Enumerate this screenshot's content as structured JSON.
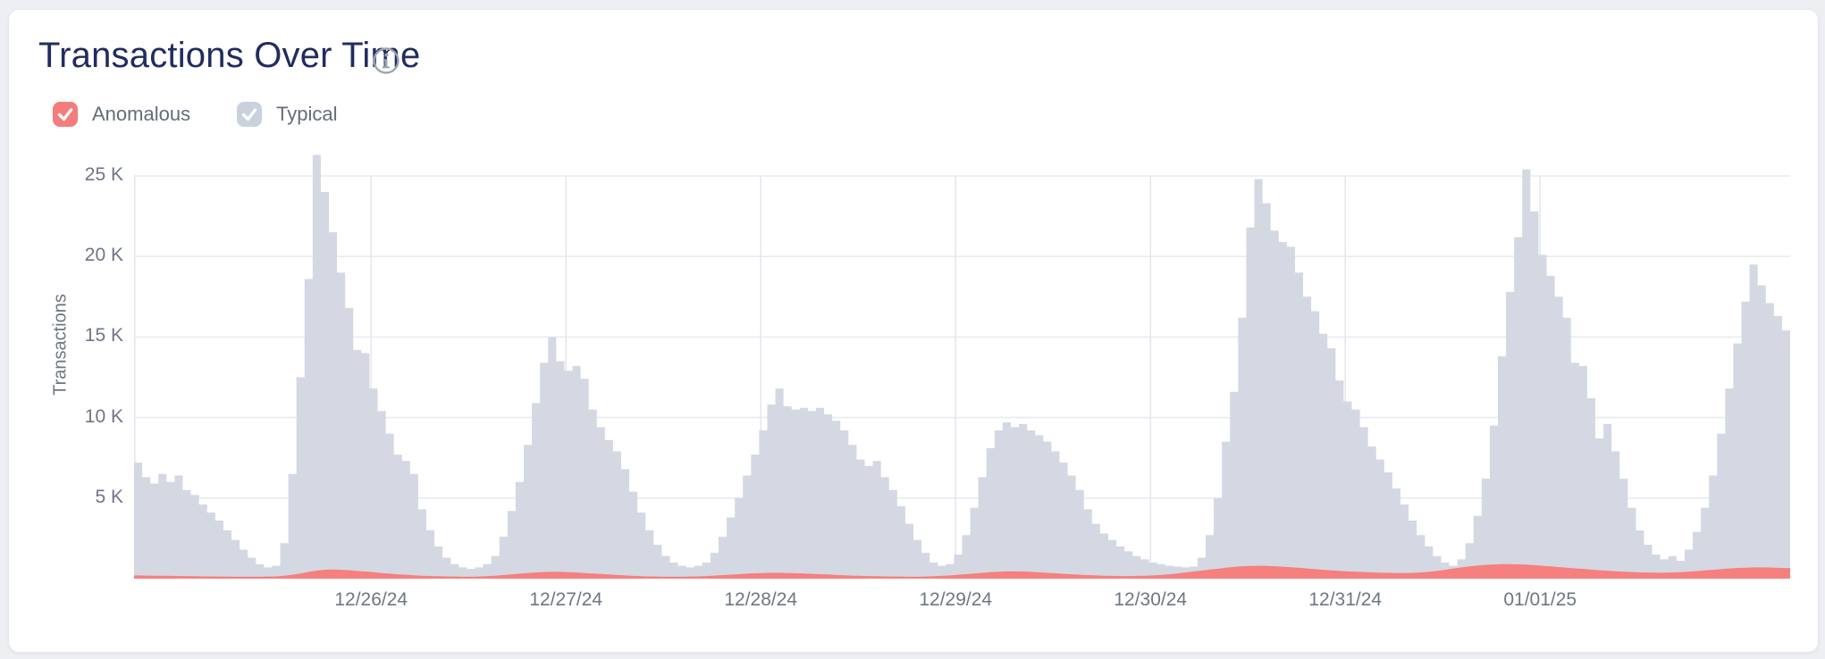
{
  "header": {
    "title": "Transactions Over Time",
    "info_icon": "info-circle-icon"
  },
  "legend": [
    {
      "label": "Anomalous",
      "checked": true,
      "color": "#f57c7c",
      "check_color": "#ffffff"
    },
    {
      "label": "Typical",
      "checked": true,
      "color": "#c9d1df",
      "check_color": "#ffffff"
    }
  ],
  "colors": {
    "page_background": "#edeff3",
    "card_background": "#ffffff",
    "card_border": "#e5e8ee",
    "title_text": "#212c5f",
    "muted_text": "#6e7684",
    "gridline": "#e9ebf2",
    "vertical_gridline": "#e4e7ef",
    "typical_bars": "#d4d8e2",
    "anomalous_area": "#f5807e"
  },
  "chart_data": {
    "type": "bar",
    "title": "Transactions Over Time",
    "xlabel": "",
    "ylabel": "Transactions",
    "values_unit": "thousands of transactions per hourly bucket",
    "ylim": [
      0,
      26500
    ],
    "grid": true,
    "legend_position": "top-left",
    "y_ticks": [
      {
        "value": 25,
        "label": "25 K"
      },
      {
        "value": 20,
        "label": "20 K"
      },
      {
        "value": 15,
        "label": "15 K"
      },
      {
        "value": 10,
        "label": "10 K"
      },
      {
        "value": 5,
        "label": "5 K"
      }
    ],
    "x_tick_labels": [
      "12/26/24",
      "12/27/24",
      "12/28/24",
      "12/29/24",
      "12/30/24",
      "12/31/24",
      "01/01/25"
    ],
    "first_tick_bar_index": 29.2,
    "bars_per_day": 24,
    "daily_peaks_k": [
      26.3,
      15.0,
      11.8,
      9.7,
      24.8,
      25.4,
      19.5
    ],
    "series": [
      {
        "name": "Typical",
        "style": "bars",
        "color": "#d4d8e2",
        "values_k": [
          7.2,
          6.3,
          5.9,
          6.5,
          6.0,
          6.4,
          5.5,
          5.2,
          4.6,
          4.1,
          3.6,
          3.0,
          2.4,
          1.8,
          1.3,
          0.9,
          0.7,
          0.8,
          2.2,
          6.5,
          12.5,
          18.6,
          26.3,
          24.0,
          21.5,
          19.0,
          16.8,
          14.2,
          14.0,
          11.8,
          10.4,
          9.0,
          7.7,
          7.3,
          6.5,
          4.3,
          3.0,
          2.0,
          1.3,
          0.9,
          0.7,
          0.6,
          0.7,
          0.9,
          1.4,
          2.6,
          4.2,
          6.0,
          8.3,
          10.9,
          13.4,
          15.0,
          13.5,
          12.9,
          13.2,
          12.4,
          10.5,
          9.4,
          8.6,
          7.9,
          6.8,
          5.4,
          4.1,
          3.0,
          2.1,
          1.4,
          1.0,
          0.8,
          0.7,
          0.8,
          1.0,
          1.6,
          2.6,
          3.8,
          5.0,
          6.4,
          7.7,
          9.2,
          10.8,
          11.8,
          10.7,
          10.5,
          10.6,
          10.4,
          10.6,
          10.2,
          9.8,
          9.2,
          8.3,
          7.4,
          7.0,
          7.3,
          6.3,
          5.5,
          4.5,
          3.4,
          2.4,
          1.6,
          1.0,
          0.8,
          0.9,
          1.5,
          2.7,
          4.4,
          6.3,
          8.1,
          9.2,
          9.7,
          9.4,
          9.6,
          9.2,
          8.9,
          8.5,
          7.9,
          7.2,
          6.4,
          5.5,
          4.3,
          3.4,
          2.8,
          2.4,
          2.0,
          1.7,
          1.4,
          1.2,
          1.0,
          0.9,
          0.8,
          0.75,
          0.7,
          0.75,
          1.3,
          2.7,
          5.0,
          8.5,
          11.6,
          16.2,
          21.8,
          24.8,
          23.3,
          21.6,
          20.9,
          20.6,
          19.0,
          17.5,
          16.6,
          15.2,
          14.3,
          12.3,
          11.0,
          10.5,
          9.4,
          8.2,
          7.4,
          6.6,
          5.6,
          4.6,
          3.6,
          2.7,
          2.0,
          1.4,
          1.0,
          0.8,
          1.2,
          2.2,
          3.9,
          6.2,
          9.5,
          13.8,
          17.8,
          21.2,
          25.4,
          22.8,
          20.1,
          18.8,
          17.5,
          16.2,
          13.4,
          13.2,
          11.2,
          8.7,
          9.6,
          7.9,
          6.2,
          4.4,
          3.0,
          2.1,
          1.5,
          1.2,
          1.4,
          1.1,
          1.8,
          2.9,
          4.4,
          6.4,
          9.0,
          11.8,
          14.6,
          17.2,
          19.5,
          18.2,
          17.1,
          16.3,
          15.4
        ]
      },
      {
        "name": "Anomalous",
        "style": "area",
        "color": "#f5807e",
        "values_k": [
          0.2,
          0.19,
          0.18,
          0.18,
          0.17,
          0.16,
          0.16,
          0.15,
          0.14,
          0.14,
          0.13,
          0.13,
          0.12,
          0.12,
          0.12,
          0.12,
          0.13,
          0.14,
          0.18,
          0.24,
          0.32,
          0.42,
          0.5,
          0.55,
          0.57,
          0.55,
          0.52,
          0.48,
          0.44,
          0.4,
          0.35,
          0.31,
          0.27,
          0.24,
          0.21,
          0.18,
          0.16,
          0.15,
          0.14,
          0.13,
          0.12,
          0.12,
          0.13,
          0.15,
          0.18,
          0.22,
          0.26,
          0.31,
          0.35,
          0.38,
          0.41,
          0.42,
          0.42,
          0.4,
          0.38,
          0.35,
          0.32,
          0.29,
          0.26,
          0.23,
          0.2,
          0.17,
          0.15,
          0.14,
          0.13,
          0.12,
          0.12,
          0.12,
          0.13,
          0.14,
          0.16,
          0.19,
          0.22,
          0.25,
          0.28,
          0.31,
          0.33,
          0.35,
          0.36,
          0.36,
          0.35,
          0.34,
          0.32,
          0.3,
          0.28,
          0.26,
          0.23,
          0.21,
          0.19,
          0.17,
          0.16,
          0.15,
          0.14,
          0.13,
          0.13,
          0.12,
          0.12,
          0.13,
          0.15,
          0.17,
          0.2,
          0.24,
          0.28,
          0.32,
          0.36,
          0.4,
          0.43,
          0.45,
          0.45,
          0.44,
          0.42,
          0.39,
          0.36,
          0.33,
          0.3,
          0.27,
          0.24,
          0.22,
          0.2,
          0.18,
          0.17,
          0.16,
          0.16,
          0.17,
          0.18,
          0.2,
          0.23,
          0.27,
          0.32,
          0.38,
          0.44,
          0.5,
          0.56,
          0.62,
          0.68,
          0.73,
          0.77,
          0.79,
          0.8,
          0.79,
          0.77,
          0.74,
          0.71,
          0.67,
          0.63,
          0.59,
          0.55,
          0.51,
          0.48,
          0.45,
          0.43,
          0.41,
          0.39,
          0.37,
          0.36,
          0.35,
          0.35,
          0.36,
          0.38,
          0.42,
          0.48,
          0.55,
          0.63,
          0.7,
          0.76,
          0.81,
          0.85,
          0.88,
          0.9,
          0.9,
          0.89,
          0.87,
          0.84,
          0.8,
          0.76,
          0.72,
          0.68,
          0.64,
          0.6,
          0.56,
          0.52,
          0.49,
          0.46,
          0.43,
          0.41,
          0.39,
          0.38,
          0.37,
          0.37,
          0.38,
          0.4,
          0.43,
          0.47,
          0.51,
          0.55,
          0.59,
          0.63,
          0.66,
          0.68,
          0.7,
          0.7,
          0.69,
          0.67,
          0.66
        ]
      }
    ]
  }
}
